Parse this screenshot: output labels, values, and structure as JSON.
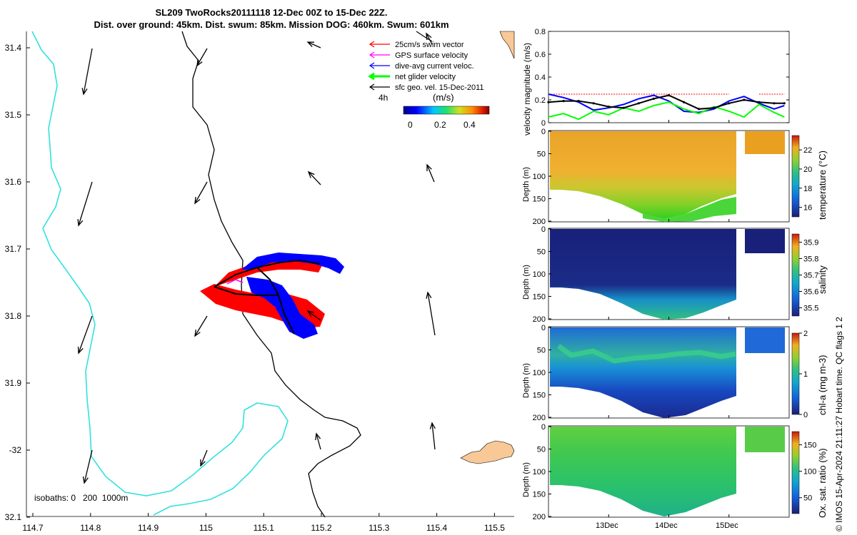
{
  "title": {
    "line1": "SL209 TwoRocks20111118 12-Dec 00Z to 15-Dec 22Z.",
    "line2": "Dist. over ground: 45km. Dist. swum: 85km. Mission DOG: 460km. Swum: 601km"
  },
  "map": {
    "lon_ticks": [
      "114.7",
      "114.8",
      "114.9",
      "115",
      "115.1",
      "115.2",
      "115.3",
      "115.4",
      "115.5"
    ],
    "lat_ticks": [
      "31.4",
      "31.5",
      "31.6",
      "31.7",
      "31.8",
      "31.9",
      "-32",
      "32.1"
    ],
    "legend": [
      {
        "label": "25cm/s swim vector",
        "color": "#ff0000"
      },
      {
        "label": "GPS surface velocity",
        "color": "#ff00ff"
      },
      {
        "label": "dive-avg current veloc.",
        "color": "#0000ff"
      },
      {
        "label": "net glider velocity",
        "color": "#00ff00"
      },
      {
        "label": "sfc geo. vel. 15-Dec-2011",
        "color": "#000000"
      }
    ],
    "interval_label": "4h",
    "colorbar_unit": "(m/s)",
    "colorbar_ticks": [
      "0",
      "0.2",
      "0.4"
    ],
    "isobaths_label": "isobaths: 0   200  1000m",
    "colors": {
      "coast": "#33e0e0",
      "land": "#f8c896",
      "track": "#000000"
    }
  },
  "chart_data": [
    {
      "type": "line",
      "title": "velocity magnitude",
      "ylabel": "velocity magnitude (m/s)",
      "ylim": [
        0,
        0.8
      ],
      "yticks": [
        "0",
        "0.2",
        "0.4",
        "0.6",
        "0.8"
      ],
      "x_days": [
        12.0,
        12.25,
        12.5,
        12.75,
        13.0,
        13.25,
        13.5,
        13.75,
        14.0,
        14.25,
        14.5,
        14.75,
        15.0,
        15.25,
        15.5,
        15.75,
        15.92
      ],
      "series": [
        {
          "name": "25cm/s swim vector",
          "color": "#ff0000",
          "values": [
            0.25,
            0.25,
            0.25,
            0.25,
            0.25,
            0.25,
            0.25,
            0.25,
            0.25,
            0.25,
            0.25,
            0.25,
            0.25,
            null,
            0.25,
            0.25,
            0.25
          ]
        },
        {
          "name": "dive-avg current veloc.",
          "color": "#0000ff",
          "values": [
            0.25,
            0.22,
            0.18,
            0.11,
            0.13,
            0.16,
            0.21,
            0.24,
            0.19,
            0.1,
            0.09,
            0.12,
            0.19,
            0.23,
            0.17,
            0.12,
            0.15
          ]
        },
        {
          "name": "net glider velocity",
          "color": "#00ff00",
          "values": [
            0.05,
            0.08,
            0.03,
            0.1,
            0.07,
            0.13,
            0.1,
            0.15,
            0.18,
            0.12,
            0.08,
            0.14,
            0.1,
            0.05,
            0.16,
            0.09,
            0.05
          ]
        },
        {
          "name": "sfc geo. vel.",
          "color": "#000000",
          "values": [
            0.18,
            0.19,
            0.19,
            0.17,
            0.14,
            0.13,
            0.17,
            0.21,
            0.24,
            0.18,
            0.12,
            0.13,
            0.17,
            0.2,
            0.18,
            0.17,
            0.17
          ]
        }
      ]
    },
    {
      "type": "heatmap",
      "variable": "temperature (°C)",
      "ylabel": "Depth (m)",
      "yticks": [
        "0",
        "50",
        "100",
        "150",
        "200"
      ],
      "cbar_ticks": [
        "16",
        "18",
        "20",
        "22"
      ],
      "cbar_range": [
        15,
        23.5
      ]
    },
    {
      "type": "heatmap",
      "variable": "salinity",
      "ylabel": "Depth (m)",
      "yticks": [
        "0",
        "50",
        "100",
        "150",
        "200"
      ],
      "cbar_ticks": [
        "35.5",
        "35.6",
        "35.7",
        "35.8",
        "35.9"
      ],
      "cbar_range": [
        35.45,
        35.95
      ]
    },
    {
      "type": "heatmap",
      "variable": "chl-a (mg m-3)",
      "ylabel": "Depth (m)",
      "yticks": [
        "0",
        "50",
        "100",
        "150",
        "200"
      ],
      "cbar_ticks": [
        "0",
        "1",
        "2"
      ],
      "cbar_range": [
        0,
        2
      ]
    },
    {
      "type": "heatmap",
      "variable": "Ox. sat. ratio (%)",
      "ylabel": "Depth (m)",
      "yticks": [
        "0",
        "50",
        "100",
        "150",
        "200"
      ],
      "cbar_ticks": [
        "50",
        "100",
        "150"
      ],
      "cbar_range": [
        20,
        175
      ]
    }
  ],
  "x_time_ticks": [
    "13Dec",
    "14Dec",
    "15Dec"
  ],
  "footer": "© IMOS 15-Apr-2024 21:11:27 Hobart time. QC flags 1  2"
}
